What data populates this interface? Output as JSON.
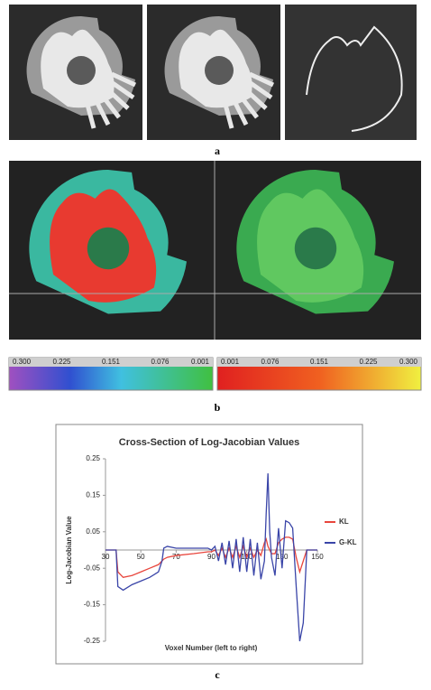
{
  "figure": {
    "labels": [
      "a",
      "b",
      "c"
    ],
    "colorbars": [
      {
        "labels": [
          "0.300",
          "0.225",
          "0.151",
          "0.076",
          "0.001"
        ]
      },
      {
        "labels": [
          "0.001",
          "0.076",
          "0.151",
          "0.225",
          "0.300"
        ]
      }
    ]
  },
  "chart_data": {
    "type": "line",
    "title": "Cross-Section of Log-Jacobian Values",
    "y_label": "Log-Jacobian Value",
    "x_label": "Voxel Number (left to right)",
    "xlim": [
      30,
      150
    ],
    "xticks": [
      30,
      50,
      70,
      90,
      110,
      130,
      150
    ],
    "ylim": [
      -0.25,
      0.25
    ],
    "yticks": [
      0.25,
      0.15,
      0.05,
      -0.05,
      -0.15,
      -0.25
    ],
    "x": [
      30,
      33,
      36,
      37,
      40,
      45,
      50,
      55,
      60,
      62,
      63,
      65,
      70,
      80,
      88,
      90,
      92,
      94,
      96,
      98,
      100,
      102,
      104,
      106,
      108,
      110,
      112,
      114,
      116,
      118,
      120,
      121,
      122,
      123,
      124,
      126,
      128,
      130,
      132,
      134,
      136,
      138,
      140,
      142,
      144,
      147,
      150
    ],
    "series": [
      {
        "name": "KL",
        "color": "#e8453c",
        "values": [
          0,
          0,
          0,
          -0.06,
          -0.075,
          -0.07,
          -0.06,
          -0.05,
          -0.04,
          -0.03,
          -0.025,
          -0.02,
          -0.015,
          -0.01,
          -0.005,
          -0.005,
          0,
          -0.015,
          0.005,
          -0.02,
          0.005,
          -0.02,
          0.01,
          -0.02,
          0.01,
          -0.02,
          0.005,
          -0.02,
          0,
          -0.015,
          0.02,
          0.03,
          0.01,
          0,
          -0.01,
          -0.01,
          0.02,
          0.03,
          0.035,
          0.035,
          0.03,
          -0.02,
          -0.06,
          -0.03,
          0,
          0,
          0
        ]
      },
      {
        "name": "G-KL",
        "color": "#3a45a8",
        "values": [
          0,
          0,
          0,
          -0.1,
          -0.11,
          -0.095,
          -0.085,
          -0.075,
          -0.06,
          -0.03,
          0.005,
          0.01,
          0.005,
          0.005,
          0.005,
          0,
          0.01,
          -0.03,
          0.02,
          -0.04,
          0.025,
          -0.05,
          0.03,
          -0.06,
          0.035,
          -0.06,
          0.03,
          -0.07,
          0.02,
          -0.08,
          -0.03,
          0.1,
          0.21,
          0.05,
          -0.02,
          -0.07,
          0.06,
          -0.05,
          0.08,
          0.075,
          0.06,
          -0.1,
          -0.25,
          -0.2,
          0,
          0,
          0
        ]
      }
    ]
  }
}
